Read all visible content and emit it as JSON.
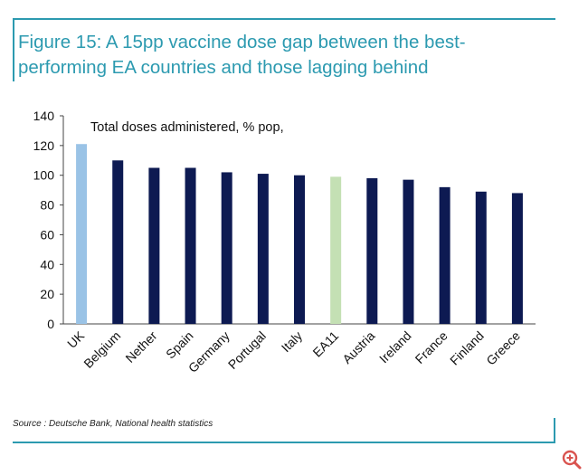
{
  "figure": {
    "title": "Figure 15: A 15pp vaccine dose gap between the best-performing EA countries and those lagging behind",
    "source": "Source : Deutsche Bank, National health statistics"
  },
  "colors": {
    "accent": "#2c9ab0",
    "bar_default": "#0d1a52",
    "bar_uk": "#9ac3e6",
    "bar_ea11": "#c4e0b4"
  },
  "chart_data": {
    "type": "bar",
    "annotation": "Total doses administered, % pop,",
    "categories": [
      "UK",
      "Belgium",
      "Nether",
      "Spain",
      "Germany",
      "Portugal",
      "Italy",
      "EA11",
      "Austria",
      "Ireland",
      "France",
      "Finland",
      "Greece"
    ],
    "values": [
      121,
      110,
      105,
      105,
      102,
      101,
      100,
      99,
      98,
      97,
      92,
      89,
      88
    ],
    "highlight": {
      "UK": "bar_uk",
      "EA11": "bar_ea11"
    },
    "ylim": [
      0,
      140
    ],
    "yticks": [
      0,
      20,
      40,
      60,
      80,
      100,
      120,
      140
    ],
    "xlabel": "",
    "ylabel": "",
    "grid": false
  },
  "icons": {
    "zoom": "zoom-in-icon"
  }
}
